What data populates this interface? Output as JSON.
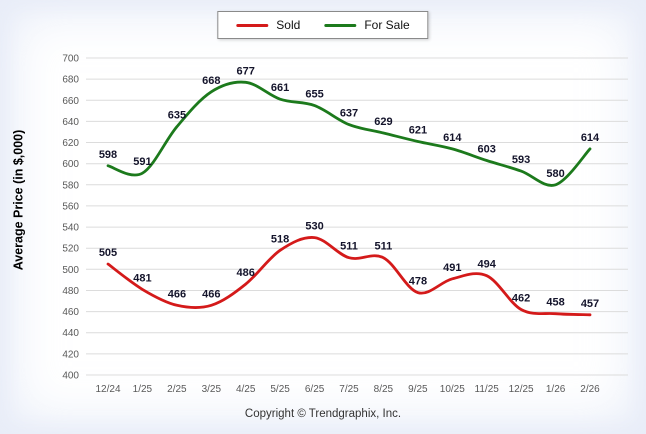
{
  "legend": {
    "sold_label": "Sold",
    "for_sale_label": "For Sale"
  },
  "y_axis_title": "Average Price (in $,000)",
  "footer": "Copyright © Trendgraphix, Inc.",
  "colors": {
    "sold": "#d41a1a",
    "for_sale": "#1c7a1c",
    "grid": "#dcdcdc",
    "tick": "#595959",
    "data_label": "#14142b"
  },
  "chart_data": {
    "type": "line",
    "categories": [
      "12/24",
      "1/25",
      "2/25",
      "3/25",
      "4/25",
      "5/25",
      "6/25",
      "7/25",
      "8/25",
      "9/25",
      "10/25",
      "11/25",
      "12/25",
      "1/26",
      "2/26"
    ],
    "series": [
      {
        "name": "Sold",
        "color": "#d41a1a",
        "values": [
          505,
          481,
          466,
          466,
          486,
          518,
          530,
          511,
          511,
          478,
          491,
          494,
          462,
          458,
          457
        ]
      },
      {
        "name": "For Sale",
        "color": "#1c7a1c",
        "values": [
          598,
          591,
          635,
          668,
          677,
          661,
          655,
          637,
          629,
          621,
          614,
          603,
          593,
          580,
          614
        ]
      }
    ],
    "ylim": [
      400,
      700
    ],
    "ytick_step": 20,
    "grid": true,
    "legend_position": "top",
    "smooth": true
  }
}
